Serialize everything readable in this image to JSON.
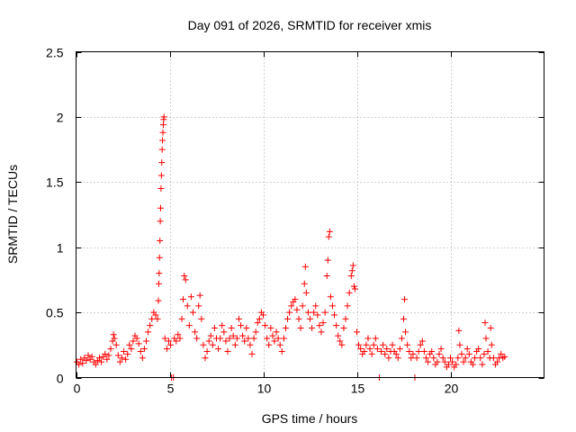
{
  "chart_data": {
    "type": "scatter",
    "title": "Day 091 of 2026, SRMTID for receiver xmis",
    "xlabel": "GPS time / hours",
    "ylabel": "SRMTID / TECUs",
    "xlim": [
      0,
      25
    ],
    "ylim": [
      0,
      2.5
    ],
    "xticks": [
      0,
      5,
      10,
      15,
      20
    ],
    "yticks": [
      0,
      0.5,
      1,
      1.5,
      2,
      2.5
    ],
    "ytick_labels": [
      "0",
      "0.5",
      "1",
      "1.5",
      "2",
      "2.5"
    ],
    "grid": true,
    "marker": "+",
    "color": "#ff0000",
    "series": [
      {
        "name": "SRMTID",
        "points": [
          [
            0.05,
            0.12
          ],
          [
            0.15,
            0.1
          ],
          [
            0.25,
            0.14
          ],
          [
            0.35,
            0.11
          ],
          [
            0.45,
            0.15
          ],
          [
            0.55,
            0.13
          ],
          [
            0.65,
            0.17
          ],
          [
            0.75,
            0.14
          ],
          [
            0.85,
            0.16
          ],
          [
            0.95,
            0.12
          ],
          [
            1.05,
            0.1
          ],
          [
            1.15,
            0.13
          ],
          [
            1.25,
            0.15
          ],
          [
            1.35,
            0.12
          ],
          [
            1.45,
            0.16
          ],
          [
            1.55,
            0.18
          ],
          [
            1.65,
            0.14
          ],
          [
            1.75,
            0.17
          ],
          [
            1.85,
            0.22
          ],
          [
            1.95,
            0.28
          ],
          [
            2.0,
            0.33
          ],
          [
            2.05,
            0.3
          ],
          [
            2.15,
            0.25
          ],
          [
            2.25,
            0.17
          ],
          [
            2.35,
            0.12
          ],
          [
            2.45,
            0.15
          ],
          [
            2.55,
            0.2
          ],
          [
            2.65,
            0.14
          ],
          [
            2.75,
            0.18
          ],
          [
            2.85,
            0.25
          ],
          [
            2.95,
            0.22
          ],
          [
            3.05,
            0.28
          ],
          [
            3.15,
            0.32
          ],
          [
            3.25,
            0.3
          ],
          [
            3.35,
            0.26
          ],
          [
            3.45,
            0.2
          ],
          [
            3.55,
            0.15
          ],
          [
            3.65,
            0.22
          ],
          [
            3.75,
            0.28
          ],
          [
            3.85,
            0.35
          ],
          [
            3.95,
            0.4
          ],
          [
            4.05,
            0.45
          ],
          [
            4.15,
            0.5
          ],
          [
            4.25,
            0.48
          ],
          [
            4.35,
            0.45
          ],
          [
            4.4,
            0.59
          ],
          [
            4.42,
            0.72
          ],
          [
            4.44,
            0.8
          ],
          [
            4.46,
            0.92
          ],
          [
            4.48,
            1.05
          ],
          [
            4.5,
            1.2
          ],
          [
            4.52,
            1.3
          ],
          [
            4.54,
            1.45
          ],
          [
            4.56,
            1.55
          ],
          [
            4.58,
            1.65
          ],
          [
            4.6,
            1.75
          ],
          [
            4.62,
            1.82
          ],
          [
            4.64,
            1.88
          ],
          [
            4.66,
            1.94
          ],
          [
            4.68,
            1.98
          ],
          [
            4.7,
            2.0
          ],
          [
            4.75,
            0.3
          ],
          [
            4.85,
            0.22
          ],
          [
            4.95,
            0.28
          ],
          [
            5.05,
            0.25
          ],
          [
            5.1,
            0.0
          ],
          [
            5.2,
            0.0
          ],
          [
            5.25,
            0.3
          ],
          [
            5.35,
            0.28
          ],
          [
            5.45,
            0.33
          ],
          [
            5.55,
            0.3
          ],
          [
            5.65,
            0.45
          ],
          [
            5.72,
            0.6
          ],
          [
            5.78,
            0.78
          ],
          [
            5.85,
            0.75
          ],
          [
            5.95,
            0.55
          ],
          [
            6.05,
            0.4
          ],
          [
            6.15,
            0.62
          ],
          [
            6.25,
            0.5
          ],
          [
            6.35,
            0.35
          ],
          [
            6.45,
            0.3
          ],
          [
            6.55,
            0.55
          ],
          [
            6.62,
            0.63
          ],
          [
            6.7,
            0.45
          ],
          [
            6.8,
            0.25
          ],
          [
            6.9,
            0.15
          ],
          [
            7.0,
            0.2
          ],
          [
            7.1,
            0.28
          ],
          [
            7.2,
            0.32
          ],
          [
            7.3,
            0.25
          ],
          [
            7.4,
            0.38
          ],
          [
            7.5,
            0.3
          ],
          [
            7.6,
            0.22
          ],
          [
            7.7,
            0.3
          ],
          [
            7.8,
            0.4
          ],
          [
            7.9,
            0.35
          ],
          [
            8.0,
            0.28
          ],
          [
            8.1,
            0.2
          ],
          [
            8.2,
            0.3
          ],
          [
            8.3,
            0.38
          ],
          [
            8.4,
            0.32
          ],
          [
            8.5,
            0.25
          ],
          [
            8.6,
            0.3
          ],
          [
            8.7,
            0.45
          ],
          [
            8.8,
            0.4
          ],
          [
            8.9,
            0.32
          ],
          [
            9.0,
            0.28
          ],
          [
            9.1,
            0.38
          ],
          [
            9.2,
            0.3
          ],
          [
            9.3,
            0.25
          ],
          [
            9.4,
            0.18
          ],
          [
            9.5,
            0.3
          ],
          [
            9.6,
            0.35
          ],
          [
            9.7,
            0.42
          ],
          [
            9.8,
            0.45
          ],
          [
            9.9,
            0.5
          ],
          [
            10.0,
            0.48
          ],
          [
            10.1,
            0.4
          ],
          [
            10.2,
            0.3
          ],
          [
            10.3,
            0.25
          ],
          [
            10.4,
            0.38
          ],
          [
            10.5,
            0.32
          ],
          [
            10.6,
            0.28
          ],
          [
            10.7,
            0.35
          ],
          [
            10.8,
            0.3
          ],
          [
            10.9,
            0.25
          ],
          [
            11.0,
            0.2
          ],
          [
            11.1,
            0.3
          ],
          [
            11.2,
            0.38
          ],
          [
            11.3,
            0.45
          ],
          [
            11.4,
            0.5
          ],
          [
            11.5,
            0.55
          ],
          [
            11.6,
            0.58
          ],
          [
            11.7,
            0.6
          ],
          [
            11.8,
            0.52
          ],
          [
            11.9,
            0.45
          ],
          [
            12.0,
            0.38
          ],
          [
            12.1,
            0.55
          ],
          [
            12.2,
            0.72
          ],
          [
            12.25,
            0.85
          ],
          [
            12.3,
            0.65
          ],
          [
            12.4,
            0.5
          ],
          [
            12.5,
            0.45
          ],
          [
            12.6,
            0.38
          ],
          [
            12.7,
            0.5
          ],
          [
            12.8,
            0.55
          ],
          [
            12.9,
            0.48
          ],
          [
            13.0,
            0.4
          ],
          [
            13.1,
            0.35
          ],
          [
            13.2,
            0.42
          ],
          [
            13.3,
            0.5
          ],
          [
            13.4,
            0.78
          ],
          [
            13.45,
            0.9
          ],
          [
            13.5,
            1.08
          ],
          [
            13.55,
            1.12
          ],
          [
            13.6,
            0.62
          ],
          [
            13.7,
            0.55
          ],
          [
            13.8,
            0.48
          ],
          [
            13.9,
            0.4
          ],
          [
            14.0,
            0.32
          ],
          [
            14.1,
            0.28
          ],
          [
            14.2,
            0.25
          ],
          [
            14.3,
            0.38
          ],
          [
            14.4,
            0.45
          ],
          [
            14.5,
            0.55
          ],
          [
            14.6,
            0.65
          ],
          [
            14.7,
            0.78
          ],
          [
            14.75,
            0.82
          ],
          [
            14.8,
            0.86
          ],
          [
            14.85,
            0.7
          ],
          [
            14.9,
            0.68
          ],
          [
            15.0,
            0.35
          ],
          [
            15.1,
            0.25
          ],
          [
            15.2,
            0.22
          ],
          [
            15.3,
            0.18
          ],
          [
            15.4,
            0.2
          ],
          [
            15.5,
            0.25
          ],
          [
            15.6,
            0.3
          ],
          [
            15.7,
            0.22
          ],
          [
            15.8,
            0.18
          ],
          [
            15.9,
            0.25
          ],
          [
            16.0,
            0.3
          ],
          [
            16.1,
            0.22
          ],
          [
            16.2,
            0.0
          ],
          [
            16.3,
            0.2
          ],
          [
            16.4,
            0.25
          ],
          [
            16.5,
            0.18
          ],
          [
            16.6,
            0.22
          ],
          [
            16.7,
            0.15
          ],
          [
            16.8,
            0.2
          ],
          [
            16.9,
            0.25
          ],
          [
            17.0,
            0.2
          ],
          [
            17.1,
            0.18
          ],
          [
            17.2,
            0.15
          ],
          [
            17.3,
            0.22
          ],
          [
            17.4,
            0.3
          ],
          [
            17.5,
            0.45
          ],
          [
            17.55,
            0.6
          ],
          [
            17.6,
            0.35
          ],
          [
            17.7,
            0.25
          ],
          [
            17.8,
            0.2
          ],
          [
            17.9,
            0.15
          ],
          [
            18.0,
            0.18
          ],
          [
            18.1,
            0.0
          ],
          [
            18.2,
            0.15
          ],
          [
            18.3,
            0.2
          ],
          [
            18.4,
            0.25
          ],
          [
            18.5,
            0.28
          ],
          [
            18.6,
            0.2
          ],
          [
            18.7,
            0.15
          ],
          [
            18.8,
            0.12
          ],
          [
            18.9,
            0.18
          ],
          [
            19.0,
            0.2
          ],
          [
            19.1,
            0.15
          ],
          [
            19.2,
            0.1
          ],
          [
            19.3,
            0.12
          ],
          [
            19.4,
            0.18
          ],
          [
            19.5,
            0.22
          ],
          [
            19.6,
            0.15
          ],
          [
            19.7,
            0.12
          ],
          [
            19.8,
            0.08
          ],
          [
            19.9,
            0.1
          ],
          [
            20.0,
            0.15
          ],
          [
            20.1,
            0.12
          ],
          [
            20.2,
            0.08
          ],
          [
            20.3,
            0.1
          ],
          [
            20.4,
            0.15
          ],
          [
            20.45,
            0.36
          ],
          [
            20.5,
            0.25
          ],
          [
            20.6,
            0.18
          ],
          [
            20.7,
            0.12
          ],
          [
            20.8,
            0.15
          ],
          [
            20.9,
            0.22
          ],
          [
            21.0,
            0.18
          ],
          [
            21.1,
            0.12
          ],
          [
            21.2,
            0.1
          ],
          [
            21.3,
            0.15
          ],
          [
            21.4,
            0.2
          ],
          [
            21.5,
            0.22
          ],
          [
            21.6,
            0.15
          ],
          [
            21.7,
            0.1
          ],
          [
            21.8,
            0.18
          ],
          [
            21.85,
            0.42
          ],
          [
            21.9,
            0.3
          ],
          [
            22.0,
            0.2
          ],
          [
            22.1,
            0.15
          ],
          [
            22.15,
            0.38
          ],
          [
            22.2,
            0.25
          ],
          [
            22.3,
            0.15
          ],
          [
            22.4,
            0.1
          ],
          [
            22.5,
            0.12
          ],
          [
            22.6,
            0.15
          ],
          [
            22.7,
            0.18
          ],
          [
            22.8,
            0.15
          ],
          [
            22.9,
            0.16
          ]
        ]
      }
    ]
  }
}
